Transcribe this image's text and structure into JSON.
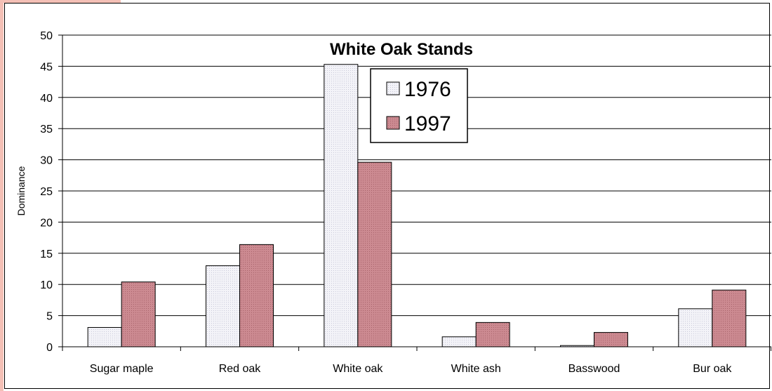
{
  "page": {
    "accent_color": "#f4c0b6"
  },
  "chart_data": {
    "type": "bar",
    "title": "White Oak Stands",
    "xlabel": "",
    "ylabel": "Dominance",
    "ylim": [
      0,
      50
    ],
    "yticks": [
      0,
      5,
      10,
      15,
      20,
      25,
      30,
      35,
      40,
      45,
      50
    ],
    "grid": true,
    "legend_position": "top-center",
    "categories": [
      "Sugar maple",
      "Red oak",
      "White oak",
      "White ash",
      "Basswood",
      "Bur oak"
    ],
    "series": [
      {
        "name": "1976",
        "color": "#f1f1f7",
        "values": [
          3.1,
          13.0,
          45.3,
          1.6,
          0.2,
          6.1
        ]
      },
      {
        "name": "1997",
        "color": "#c8838a",
        "values": [
          10.4,
          16.4,
          29.6,
          3.9,
          2.3,
          9.1
        ]
      }
    ]
  }
}
